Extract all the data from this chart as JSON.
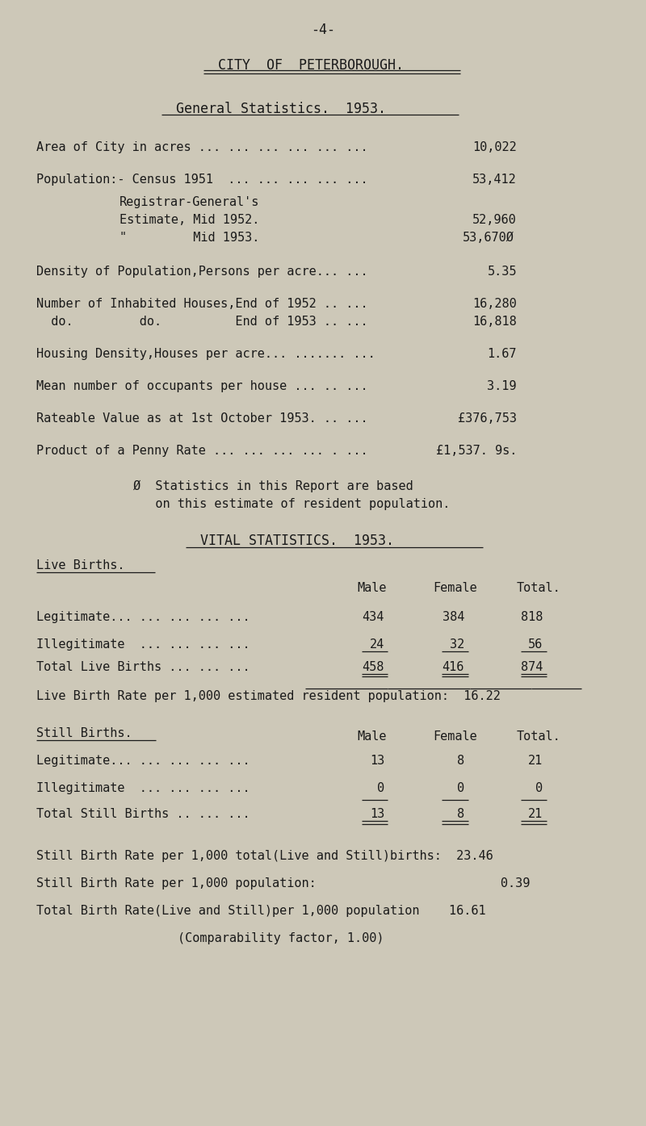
{
  "bg_color": "#cdc8b8",
  "text_color": "#1a1a1a",
  "page_number": "-4-",
  "title1": "CITY  OF  PETERBOROUGH.",
  "title2": "General Statistics.  1953.",
  "vital_title": "VITAL STATISTICS.  1953.",
  "live_births_header": "Live Births.",
  "still_births_header": "Still Births.",
  "live_birth_rate": "Live Birth Rate per 1,000 estimated resident population:  16.22",
  "still_rate1": "Still Birth Rate per 1,000 total(Live and Still)births:  23.46",
  "still_rate2": "Still Birth Rate per 1,000 population:                         0.39",
  "total_birth_rate": "Total Birth Rate(Live and Still)per 1,000 population    16.61",
  "comparability": "(Comparability factor, 1.00)"
}
